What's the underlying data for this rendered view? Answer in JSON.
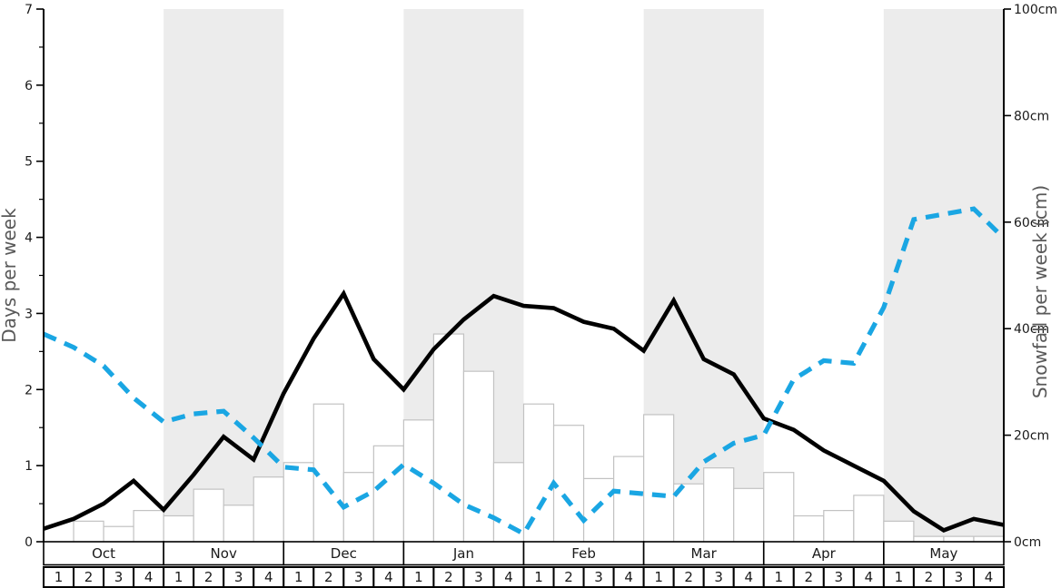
{
  "chart_data": {
    "type": "line",
    "title": "",
    "months": [
      "Oct",
      "Nov",
      "Dec",
      "Jan",
      "Feb",
      "Mar",
      "Apr",
      "May"
    ],
    "week_labels": [
      "1",
      "2",
      "3",
      "4"
    ],
    "shaded_months": [
      "Nov",
      "Jan",
      "Mar",
      "May"
    ],
    "left_axis": {
      "label": "Days per week",
      "min": 0,
      "max": 7,
      "major_ticks": [
        0,
        1,
        2,
        3,
        4,
        5,
        6,
        7
      ],
      "minor_tick_step": 0.5
    },
    "right_axis": {
      "label": "Snowfall per week (cm)",
      "min": 0,
      "max": 100,
      "major_ticks": [
        0,
        20,
        40,
        60,
        80,
        100
      ],
      "tick_suffix": "cm",
      "tick_labels": [
        "0cm",
        "20cm",
        "40cm",
        "60cm",
        "80cm",
        "100cm"
      ]
    },
    "series": [
      {
        "name": "snowy-days-per-week",
        "type": "line",
        "line_style": "solid",
        "color": "#000000",
        "axis": "left",
        "x_mode": "week-boundaries",
        "values": [
          0.17,
          0.3,
          0.5,
          0.8,
          0.42,
          0.88,
          1.38,
          1.08,
          1.95,
          2.67,
          3.26,
          2.4,
          2.0,
          2.53,
          2.92,
          3.23,
          3.1,
          3.07,
          2.89,
          2.8,
          2.51,
          3.17,
          2.4,
          2.2,
          1.62,
          1.47,
          1.2,
          1.0,
          0.8,
          0.4,
          0.15,
          0.3,
          0.22
        ]
      },
      {
        "name": "snowfall-per-week-cm",
        "type": "line",
        "line_style": "dashed",
        "color": "#1aa6e3",
        "axis": "right",
        "x_mode": "week-boundaries",
        "values": [
          39,
          36.5,
          33,
          27,
          22.5,
          24,
          24.5,
          19.5,
          14,
          13.5,
          6.5,
          9.5,
          14.5,
          11,
          7,
          4.5,
          1.5,
          11,
          4,
          9.5,
          9,
          8.5,
          15,
          18.5,
          20,
          30.5,
          34,
          33.5,
          44,
          60.5,
          61.5,
          62.5,
          57
        ]
      },
      {
        "name": "weekly-bars",
        "type": "bar",
        "fill": "#ffffff",
        "stroke": "#c2c2c2",
        "axis": "left",
        "x_mode": "week-bins",
        "values": [
          0,
          0.27,
          0.2,
          0.41,
          0.34,
          0.69,
          0.48,
          0.85,
          1.04,
          1.81,
          0.91,
          1.26,
          1.6,
          2.73,
          2.24,
          1.04,
          1.81,
          1.53,
          0.83,
          1.12,
          1.67,
          0.76,
          0.97,
          0.7,
          0.91,
          0.34,
          0.41,
          0.61,
          0.27,
          0.07,
          0.07,
          0.07
        ]
      }
    ],
    "band_color": "#ececec",
    "axis_color": "#000000",
    "tick_label_color": "#1a1a1a",
    "axis_title_color": "#595959",
    "legend": "none",
    "grid": "off"
  },
  "layout_text": {
    "left_title": "Days per week",
    "right_title": "Snowfall per week (cm)"
  }
}
